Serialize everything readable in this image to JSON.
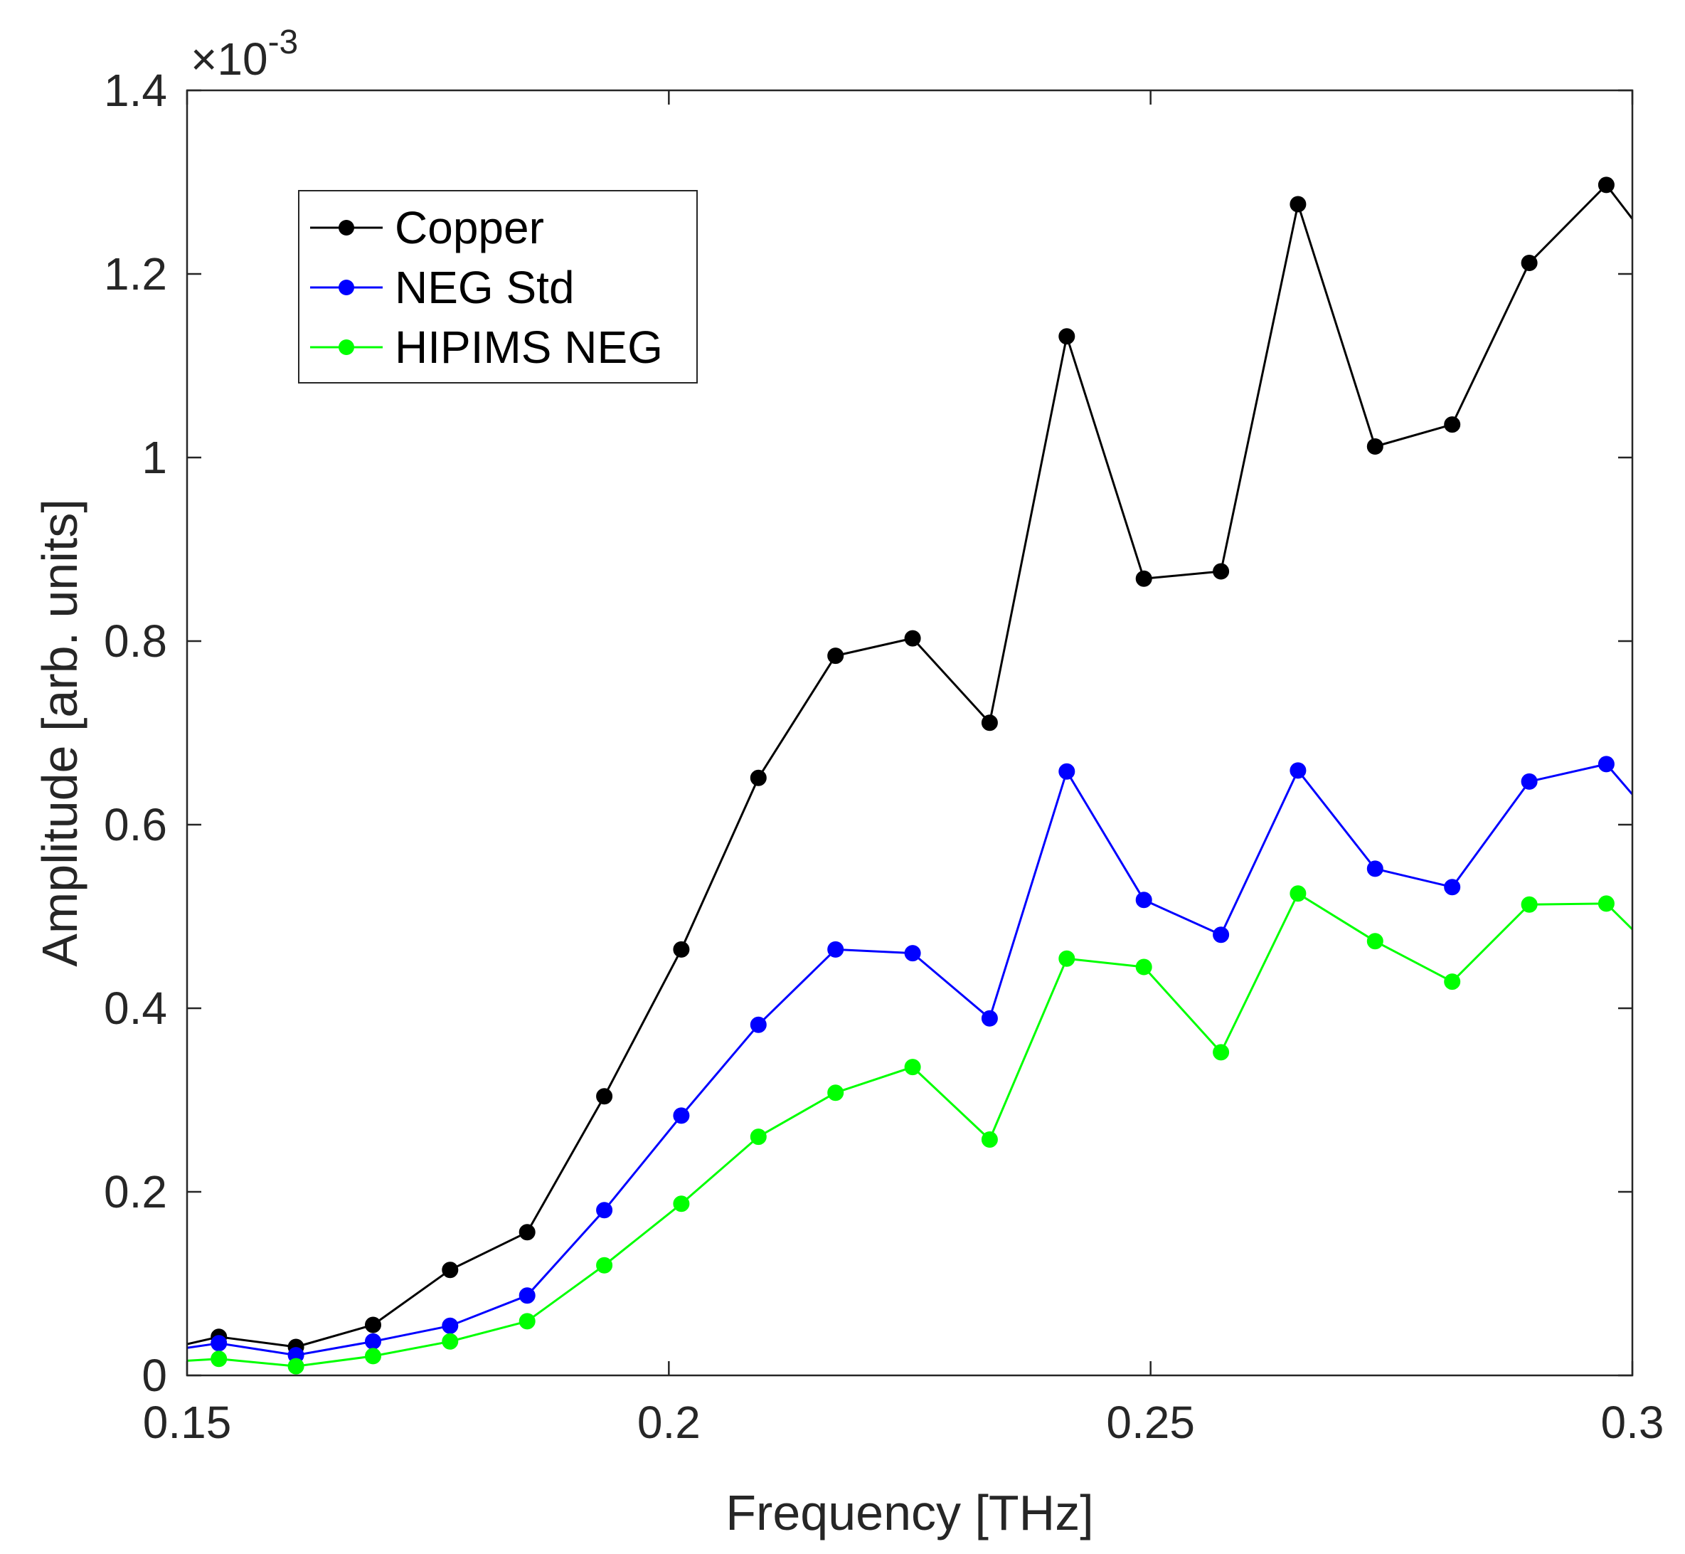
{
  "chart_data": {
    "type": "line",
    "title": "",
    "xlabel": "Frequency [THz]",
    "ylabel": "Amplitude [arb. units]",
    "xlim": [
      0.15,
      0.3
    ],
    "ylim": [
      0,
      0.0014
    ],
    "y_exponent_label": {
      "prefix": "×10",
      "power": "-3"
    },
    "xticks": [
      0.15,
      0.2,
      0.25,
      0.3
    ],
    "xtick_labels": [
      "0.15",
      "0.2",
      "0.25",
      "0.3"
    ],
    "yticks": [
      0,
      0.0002,
      0.0004,
      0.0006,
      0.0008,
      0.001,
      0.0012,
      0.0014
    ],
    "ytick_labels": [
      "0",
      "0.2",
      "0.4",
      "0.6",
      "0.8",
      "1",
      "1.2",
      "1.4"
    ],
    "grid": false,
    "legend_position": "upper-left",
    "x": [
      0.1533,
      0.1613,
      0.1693,
      0.1773,
      0.1853,
      0.1933,
      0.2013,
      0.2093,
      0.2173,
      0.2253,
      0.2333,
      0.2413,
      0.2493,
      0.2573,
      0.2653,
      0.2733,
      0.2813,
      0.2893,
      0.2973
    ],
    "series": [
      {
        "name": "Copper",
        "color": "#000000",
        "start_value": 3.4e-05,
        "end_value": 0.00126,
        "values": [
          4.2e-05,
          3.1e-05,
          5.5e-05,
          0.000115,
          0.000156,
          0.000304,
          0.000464,
          0.000651,
          0.000784,
          0.000803,
          0.000711,
          0.001132,
          0.000868,
          0.000876,
          0.001276,
          0.001012,
          0.001036,
          0.001212,
          0.001297
        ]
      },
      {
        "name": "NEG Std",
        "color": "#0000ff",
        "start_value": 3e-05,
        "end_value": 0.000633,
        "values": [
          3.5e-05,
          2.2e-05,
          3.7e-05,
          5.4e-05,
          8.7e-05,
          0.00018,
          0.000283,
          0.000382,
          0.000464,
          0.00046,
          0.000389,
          0.000658,
          0.000518,
          0.00048,
          0.000659,
          0.000552,
          0.000532,
          0.000647,
          0.000666
        ]
      },
      {
        "name": "HIPIMS NEG",
        "color": "#00ff00",
        "start_value": 1.6e-05,
        "end_value": 0.000486,
        "values": [
          1.8e-05,
          1e-05,
          2.1e-05,
          3.7e-05,
          5.9e-05,
          0.00012,
          0.000187,
          0.00026,
          0.000308,
          0.000336,
          0.000257,
          0.000454,
          0.000445,
          0.000352,
          0.000525,
          0.000473,
          0.000429,
          0.000513,
          0.000514
        ]
      }
    ]
  }
}
